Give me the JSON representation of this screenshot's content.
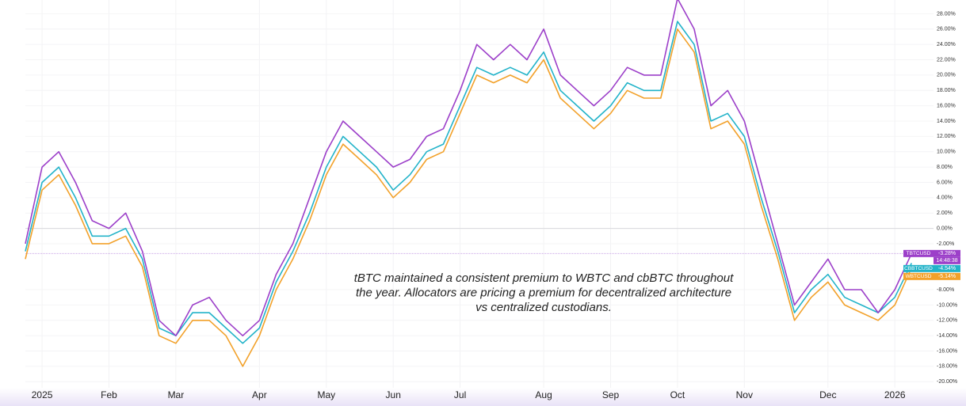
{
  "chart_data": {
    "type": "line",
    "annotation": [
      "tBTC maintained a consistent premium to WBTC and cbBTC throughout",
      "the year. Allocators are pricing a premium for decentralized architecture",
      "vs centralized custodians."
    ],
    "categories": [
      null,
      "2025",
      null,
      null,
      null,
      "Feb",
      null,
      null,
      null,
      "Mar",
      null,
      null,
      null,
      null,
      "Apr",
      null,
      null,
      null,
      "May",
      null,
      null,
      null,
      "Jun",
      null,
      null,
      null,
      "Jul",
      null,
      null,
      null,
      null,
      "Aug",
      null,
      null,
      null,
      "Sep",
      null,
      null,
      null,
      "Oct",
      null,
      null,
      null,
      "Nov",
      null,
      null,
      null,
      null,
      "Dec",
      null,
      null,
      null,
      "2026",
      null
    ],
    "series": [
      {
        "name": "TBTCUSD",
        "color": "#9c3fc9",
        "last_label": "-3.28%",
        "countdown": "14:48:38",
        "values": [
          -2,
          8,
          10,
          6,
          1,
          0,
          2,
          -3,
          -12,
          -14,
          -10,
          -9,
          -12,
          -14,
          -12,
          -6,
          -2,
          4,
          10,
          14,
          12,
          10,
          8,
          9,
          12,
          13,
          18,
          24,
          22,
          24,
          22,
          26,
          20,
          18,
          16,
          18,
          21,
          20,
          20,
          30,
          26,
          16,
          18,
          14,
          6,
          -2,
          -10,
          -7,
          -4,
          -8,
          -8,
          -11,
          -8,
          -3.28
        ]
      },
      {
        "name": "CBBTCUSD",
        "color": "#22b3c9",
        "last_label": "-4.54%",
        "values": [
          -3,
          6,
          8,
          4,
          -1,
          -1,
          0,
          -4,
          -13,
          -14,
          -11,
          -11,
          -13,
          -15,
          -13,
          -7,
          -3,
          2,
          8,
          12,
          10,
          8,
          5,
          7,
          10,
          11,
          16,
          21,
          20,
          21,
          20,
          23,
          18,
          16,
          14,
          16,
          19,
          18,
          18,
          27,
          24,
          14,
          15,
          12,
          4,
          -3,
          -11,
          -8,
          -6,
          -9,
          -10,
          -11,
          -9,
          -4.54
        ]
      },
      {
        "name": "WBTCUSD",
        "color": "#f2a12a",
        "last_label": "-5.14%",
        "values": [
          -4,
          5,
          7,
          3,
          -2,
          -2,
          -1,
          -5,
          -14,
          -15,
          -12,
          -12,
          -14,
          -18,
          -14,
          -8,
          -4,
          1,
          7,
          11,
          9,
          7,
          4,
          6,
          9,
          10,
          15,
          20,
          19,
          20,
          19,
          22,
          17,
          15,
          13,
          15,
          18,
          17,
          17,
          26,
          23,
          13,
          14,
          11,
          3,
          -4,
          -12,
          -9,
          -7,
          -10,
          -11,
          -12,
          -10,
          -5.14
        ]
      }
    ],
    "ylim": [
      -20.8,
      29.8
    ],
    "yticks": [
      {
        "value": -20,
        "label": "-20.00%"
      },
      {
        "value": -18,
        "label": "-18.00%"
      },
      {
        "value": -16,
        "label": "-16.00%"
      },
      {
        "value": -14,
        "label": "-14.00%"
      },
      {
        "value": -12,
        "label": "-12.00%"
      },
      {
        "value": -10,
        "label": "-10.00%"
      },
      {
        "value": -8,
        "label": "-8.00%"
      },
      {
        "value": -2,
        "label": "-2.00%"
      },
      {
        "value": 0,
        "label": "0.00%"
      },
      {
        "value": 2,
        "label": "2.00%"
      },
      {
        "value": 4,
        "label": "4.00%"
      },
      {
        "value": 6,
        "label": "6.00%"
      },
      {
        "value": 8,
        "label": "8.00%"
      },
      {
        "value": 10,
        "label": "10.00%"
      },
      {
        "value": 12,
        "label": "12.00%"
      },
      {
        "value": 14,
        "label": "14.00%"
      },
      {
        "value": 16,
        "label": "16.00%"
      },
      {
        "value": 18,
        "label": "18.00%"
      },
      {
        "value": 20,
        "label": "20.00%"
      },
      {
        "value": 22,
        "label": "22.00%"
      },
      {
        "value": 24,
        "label": "24.00%"
      },
      {
        "value": 26,
        "label": "26.00%"
      },
      {
        "value": 28,
        "label": "28.00%"
      }
    ],
    "zero_line": 0
  }
}
